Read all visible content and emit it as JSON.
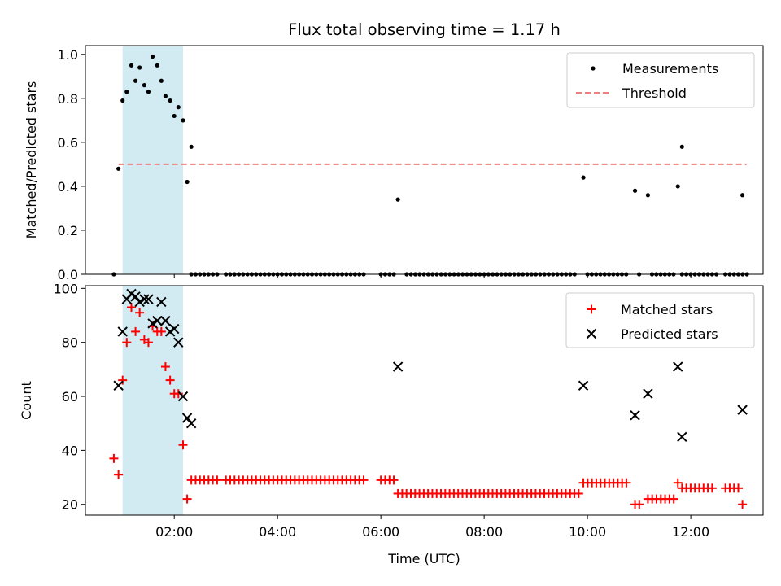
{
  "chart_data": [
    {
      "panel": "top",
      "type": "scatter",
      "title": "Flux total observing time = 1.17 h",
      "xlabel": "",
      "ylabel": "Matched/Predicted stars",
      "xlim": [
        0.28,
        13.4
      ],
      "ylim": [
        0,
        1.04
      ],
      "y_ticks": [
        "0.0",
        "0.2",
        "0.4",
        "0.6",
        "0.8",
        "1.0"
      ],
      "y_tick_values": [
        0,
        0.2,
        0.4,
        0.6,
        0.8,
        1.0
      ],
      "shaded_region": {
        "x": [
          1.0,
          2.17
        ],
        "color": "#add8e6"
      },
      "legend": {
        "loc": "top-right",
        "entries": [
          "Measurements",
          "Threshold"
        ]
      },
      "series": [
        {
          "name": "Measurements",
          "style": "dot",
          "color": "#000000",
          "points": [
            [
              0.83,
              0.0
            ],
            [
              0.92,
              0.48
            ],
            [
              1.0,
              0.79
            ],
            [
              1.08,
              0.83
            ],
            [
              1.17,
              0.95
            ],
            [
              1.25,
              0.88
            ],
            [
              1.33,
              0.94
            ],
            [
              1.42,
              0.86
            ],
            [
              1.5,
              0.83
            ],
            [
              1.58,
              0.99
            ],
            [
              1.67,
              0.95
            ],
            [
              1.75,
              0.88
            ],
            [
              1.83,
              0.81
            ],
            [
              1.92,
              0.79
            ],
            [
              2.0,
              0.72
            ],
            [
              2.08,
              0.76
            ],
            [
              2.17,
              0.7
            ],
            [
              2.25,
              0.42
            ],
            [
              2.33,
              0.58
            ],
            [
              6.33,
              0.34
            ],
            [
              9.92,
              0.44
            ],
            [
              10.92,
              0.38
            ],
            [
              11.17,
              0.36
            ],
            [
              11.75,
              0.4
            ],
            [
              11.83,
              0.58
            ],
            [
              13.0,
              0.36
            ]
          ],
          "zero_x_ranges": [
            [
              2.33,
              2.83
            ],
            [
              3.0,
              4.17
            ],
            [
              4.25,
              5.67
            ],
            [
              6.0,
              6.33
            ],
            [
              6.5,
              9.83
            ],
            [
              10.0,
              10.83
            ],
            [
              11.0,
              11.08
            ],
            [
              11.25,
              11.67
            ],
            [
              11.83,
              12.5
            ],
            [
              12.67,
              13.1
            ]
          ]
        },
        {
          "name": "Threshold",
          "style": "dashed-line",
          "color": "#f08080",
          "x": [
            0.92,
            13.08
          ],
          "y": [
            0.5,
            0.5
          ]
        }
      ]
    },
    {
      "panel": "bottom",
      "type": "scatter",
      "title": "",
      "xlabel": "Time (UTC)",
      "ylabel": "Count",
      "xlim": [
        0.28,
        13.4
      ],
      "ylim": [
        16,
        101
      ],
      "x_ticks": [
        "02:00",
        "04:00",
        "06:00",
        "08:00",
        "10:00",
        "12:00"
      ],
      "x_tick_values": [
        2,
        4,
        6,
        8,
        10,
        12
      ],
      "y_ticks": [
        "20",
        "40",
        "60",
        "80",
        "100"
      ],
      "y_tick_values": [
        20,
        40,
        60,
        80,
        100
      ],
      "shaded_region": {
        "x": [
          1.0,
          2.17
        ],
        "color": "#add8e6"
      },
      "legend": {
        "loc": "top-right",
        "entries": [
          "Matched stars",
          "Predicted stars"
        ]
      },
      "series": [
        {
          "name": "Matched stars",
          "style": "plus",
          "color": "#ff0000",
          "points": [
            [
              0.83,
              37
            ],
            [
              0.92,
              31
            ],
            [
              1.0,
              66
            ],
            [
              1.08,
              80
            ],
            [
              1.17,
              93
            ],
            [
              1.25,
              84
            ],
            [
              1.33,
              91
            ],
            [
              1.42,
              81
            ],
            [
              1.5,
              80
            ],
            [
              1.58,
              86
            ],
            [
              1.67,
              84
            ],
            [
              1.75,
              84
            ],
            [
              1.83,
              71
            ],
            [
              1.92,
              66
            ],
            [
              2.0,
              61
            ],
            [
              2.08,
              61
            ],
            [
              2.17,
              42
            ],
            [
              2.25,
              22
            ]
          ],
          "runs": [
            {
              "x": [
                2.33,
                2.83
              ],
              "y": 29
            },
            {
              "x": [
                3.0,
                4.17
              ],
              "y": 29
            },
            {
              "x": [
                4.25,
                5.67
              ],
              "y": 29
            },
            {
              "x": [
                6.0,
                6.25
              ],
              "y": 29
            },
            {
              "x": [
                6.33,
                9.83
              ],
              "y": 24
            },
            {
              "x": [
                9.92,
                10.83
              ],
              "y": 28
            },
            {
              "x": [
                10.92,
                11.08
              ],
              "y": 20
            },
            {
              "x": [
                11.17,
                11.67
              ],
              "y": 22
            },
            {
              "x": [
                11.75,
                11.75
              ],
              "y": 28
            },
            {
              "x": [
                11.83,
                12.42
              ],
              "y": 26
            },
            {
              "x": [
                12.67,
                13.0
              ],
              "y": 26
            },
            {
              "x": [
                13.0,
                13.08
              ],
              "y": 20
            }
          ]
        },
        {
          "name": "Predicted stars",
          "style": "x",
          "color": "#000000",
          "points": [
            [
              0.92,
              64
            ],
            [
              1.0,
              84
            ],
            [
              1.08,
              96
            ],
            [
              1.17,
              98
            ],
            [
              1.25,
              97
            ],
            [
              1.33,
              95
            ],
            [
              1.42,
              96
            ],
            [
              1.5,
              96
            ],
            [
              1.58,
              87
            ],
            [
              1.67,
              88
            ],
            [
              1.75,
              95
            ],
            [
              1.83,
              88
            ],
            [
              1.92,
              84
            ],
            [
              2.0,
              85
            ],
            [
              2.08,
              80
            ],
            [
              2.17,
              60
            ],
            [
              2.25,
              52
            ],
            [
              2.33,
              50
            ],
            [
              6.33,
              71
            ],
            [
              9.92,
              64
            ],
            [
              10.92,
              53
            ],
            [
              11.17,
              61
            ],
            [
              11.75,
              71
            ],
            [
              11.83,
              45
            ],
            [
              13.0,
              55
            ]
          ]
        }
      ]
    }
  ]
}
